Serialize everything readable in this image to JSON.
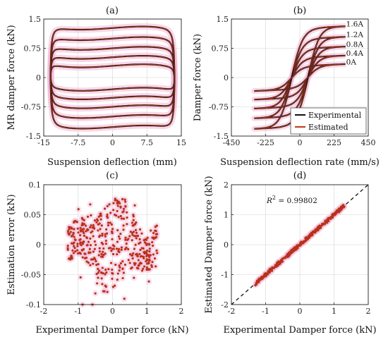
{
  "chart_data": [
    {
      "panel": "(a)",
      "type": "line",
      "xlabel": "Suspension deflection (mm)",
      "ylabel": "MR damper force (kN)",
      "xlim": [
        -15,
        15
      ],
      "ylim": [
        -1.5,
        1.5
      ],
      "xticks": [
        "-15",
        "-7.5",
        "0",
        "7.5",
        "15"
      ],
      "xtickvals": [
        -15,
        -7.5,
        0,
        7.5,
        15
      ],
      "yticks": [
        "-1.5",
        "-0.75",
        "0",
        "0.75",
        "1.5"
      ],
      "ytickvals": [
        -1.5,
        -0.75,
        0,
        0.75,
        1.5
      ],
      "grid": true,
      "loops": [
        {
          "current": "0A",
          "upper": 0.3,
          "lower": -0.3
        },
        {
          "current": "0.4A",
          "upper": 0.52,
          "lower": -0.52
        },
        {
          "current": "0.8A",
          "upper": 0.75,
          "lower": -0.75
        },
        {
          "current": "1.2A",
          "upper": 1.0,
          "lower": -1.0
        },
        {
          "current": "1.6A",
          "upper": 1.27,
          "lower": -1.27
        }
      ],
      "series": [
        {
          "name": "Experimental",
          "color": "#111111"
        },
        {
          "name": "Estimated",
          "color": "#c0391b"
        }
      ]
    },
    {
      "panel": "(b)",
      "type": "line",
      "xlabel": "Suspension deflection rate (mm/s)",
      "ylabel": "Damper force (kN)",
      "xlim": [
        -450,
        450
      ],
      "ylim": [
        -1.5,
        1.5
      ],
      "xticks": [
        "-450",
        "-225",
        "0",
        "225",
        "450"
      ],
      "xtickvals": [
        -450,
        -225,
        0,
        225,
        450
      ],
      "yticks": [
        "-1.5",
        "-0.75",
        "0",
        "0.75",
        "1.5"
      ],
      "ytickvals": [
        -1.5,
        -0.75,
        0,
        0.75,
        1.5
      ],
      "grid": true,
      "annotations": [
        "1.6A",
        "1.2A",
        "0.8A",
        "0.4A",
        "0A"
      ],
      "annotation_values": [
        1.27,
        1.0,
        0.75,
        0.52,
        0.3
      ],
      "legend": {
        "position": "bottom-right",
        "entries": [
          "Experimental",
          "Estimated"
        ]
      },
      "series": [
        {
          "name": "Experimental",
          "color": "#111111"
        },
        {
          "name": "Estimated",
          "color": "#c0391b"
        }
      ]
    },
    {
      "panel": "(c)",
      "type": "scatter",
      "xlabel": "Experimental Damper force (kN)",
      "ylabel": "Estimation error (kN)",
      "xlim": [
        -2,
        2
      ],
      "ylim": [
        -0.1,
        0.1
      ],
      "xticks": [
        "-2",
        "-1",
        "0",
        "1",
        "2"
      ],
      "xtickvals": [
        -2,
        -1,
        0,
        1,
        2
      ],
      "yticks": [
        "-0.1",
        "-0.05",
        "0",
        "0.05",
        "0.1"
      ],
      "ytickvals": [
        -0.1,
        -0.05,
        0,
        0.05,
        0.1
      ],
      "grid": true,
      "x_range_of_points": [
        -1.3,
        1.3
      ],
      "y_range_of_points": [
        -0.1,
        0.1
      ],
      "color": "#b8321a"
    },
    {
      "panel": "(d)",
      "type": "scatter",
      "xlabel": "Experimental Damper force (kN)",
      "ylabel": "Estimated Damper force (kN)",
      "xlim": [
        -2,
        2
      ],
      "ylim": [
        -2,
        2
      ],
      "xticks": [
        "-2",
        "-1",
        "0",
        "1",
        "2"
      ],
      "xtickvals": [
        -2,
        -1,
        0,
        1,
        2
      ],
      "yticks": [
        "-2",
        "-1",
        "0",
        "1",
        "2"
      ],
      "ytickvals": [
        -2,
        -1,
        0,
        1,
        2
      ],
      "grid": true,
      "annotation": {
        "prefix": "R",
        "sup": "2",
        "text": " = 0.99802"
      },
      "reference_line": {
        "from": [
          -2,
          -2
        ],
        "to": [
          2,
          2
        ],
        "style": "dashed"
      },
      "x_range_of_points": [
        -1.3,
        1.3
      ],
      "color": "#b8321a"
    }
  ]
}
